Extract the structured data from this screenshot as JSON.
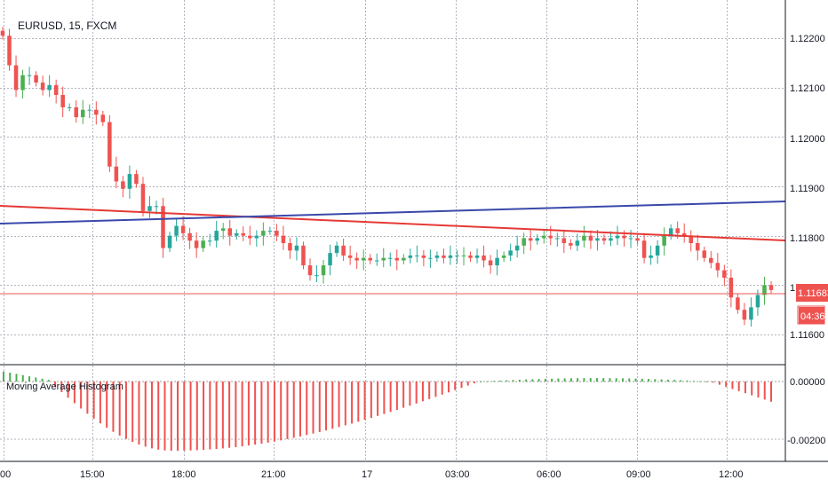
{
  "symbol_title": "EURUSD, 15, FXCM",
  "indicator_title": "Moving Average Histogram",
  "colors": {
    "background": "#ffffff",
    "grid": "#b2b5be",
    "up": "#26a69a",
    "up_alt": "#4caf50",
    "down": "#ef5350",
    "ma_red": "#e53935",
    "ma_blue": "#3949ab",
    "last_price_line": "#ef5350",
    "axis_text": "#131722"
  },
  "price_axis": {
    "ticks": [
      "1.12200",
      "1.12100",
      "1.12000",
      "1.11900",
      "1.11800",
      "1.11700",
      "1.11600"
    ],
    "last_price_badge": "1.11683",
    "countdown_badge": "04:36"
  },
  "indicator_axis": {
    "ticks": [
      "0.00000",
      "-0.00200"
    ]
  },
  "time_axis": {
    "ticks": [
      "00",
      "15:00",
      "18:00",
      "21:00",
      "17",
      "03:00",
      "06:00",
      "09:00",
      "12:00"
    ]
  },
  "chart_data": {
    "type": "candlestick",
    "price_range": [
      1.1156,
      1.1225
    ],
    "last_price": 1.11683,
    "moving_averages": [
      {
        "color": "red",
        "start": 1.11865,
        "end": 1.11792
      },
      {
        "color": "blue",
        "start": 1.11827,
        "end": 1.11872
      }
    ],
    "indicator_range": [
      -0.0024,
      0.0004
    ]
  }
}
